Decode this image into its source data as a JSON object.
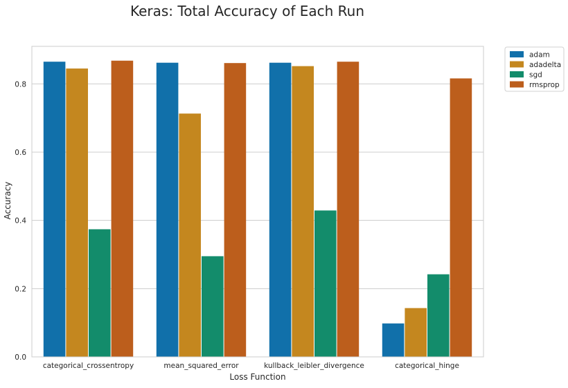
{
  "chart_data": {
    "type": "bar",
    "title": "Keras: Total Accuracy of Each Run",
    "xlabel": "Loss Function",
    "ylabel": "Accuracy",
    "categories": [
      "categorical_crossentropy",
      "mean_squared_error",
      "kullback_leibler_divergence",
      "categorical_hinge"
    ],
    "series": [
      {
        "name": "adam",
        "color": "#1170aa",
        "values": [
          0.865,
          0.862,
          0.862,
          0.098
        ]
      },
      {
        "name": "adadelta",
        "color": "#c4871f",
        "values": [
          0.845,
          0.713,
          0.852,
          0.143
        ]
      },
      {
        "name": "sgd",
        "color": "#138c6b",
        "values": [
          0.374,
          0.295,
          0.429,
          0.242
        ]
      },
      {
        "name": "rmsprop",
        "color": "#bc5e1c",
        "values": [
          0.868,
          0.861,
          0.865,
          0.816
        ]
      }
    ],
    "ylim": [
      0,
      0.91
    ],
    "yticks": [
      0.0,
      0.2,
      0.4,
      0.6,
      0.8
    ],
    "ytick_labels": [
      "0.0",
      "0.2",
      "0.4",
      "0.6",
      "0.8"
    ],
    "grid": "horizontal",
    "legend_position": "outside-top-right"
  }
}
